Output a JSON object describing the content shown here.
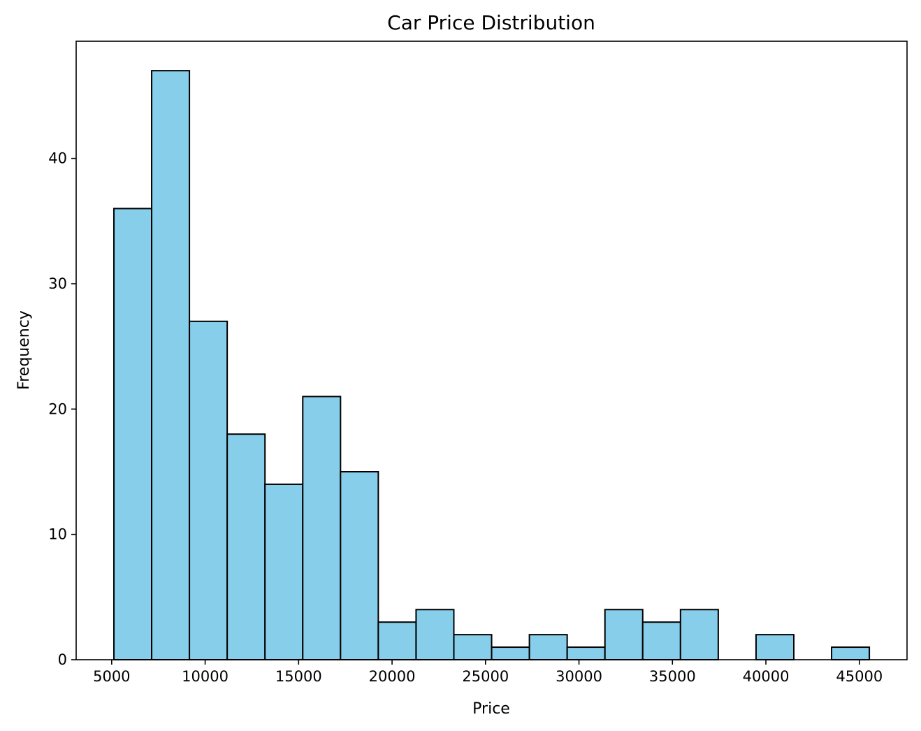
{
  "chart_data": {
    "type": "bar",
    "histogram": true,
    "title": "Car Price Distribution",
    "xlabel": "Price",
    "ylabel": "Frequency",
    "bin_edges": [
      5118,
      7138.85,
      9159.7,
      11180.55,
      13201.4,
      15222.25,
      17243.1,
      19263.95,
      21284.8,
      23305.65,
      25326.5,
      27347.35,
      29368.2,
      31389.05,
      33409.9,
      35430.75,
      37451.6,
      39472.45,
      41493.3,
      43514.15,
      45535
    ],
    "values": [
      36,
      47,
      27,
      18,
      14,
      21,
      15,
      3,
      4,
      2,
      1,
      2,
      1,
      4,
      3,
      4,
      0,
      2,
      0,
      1
    ],
    "xlim": [
      3100,
      47550
    ],
    "ylim": [
      0,
      49.35
    ],
    "xticks": [
      5000,
      10000,
      15000,
      20000,
      25000,
      30000,
      35000,
      40000,
      45000
    ],
    "xtick_labels": [
      "5000",
      "10000",
      "15000",
      "20000",
      "25000",
      "30000",
      "35000",
      "40000",
      "45000"
    ],
    "yticks": [
      0,
      10,
      20,
      30,
      40
    ],
    "ytick_labels": [
      "0",
      "10",
      "20",
      "30",
      "40"
    ],
    "bar_color": "#87ceeb",
    "edge_color": "#000000",
    "grid": false,
    "legend": "none"
  }
}
